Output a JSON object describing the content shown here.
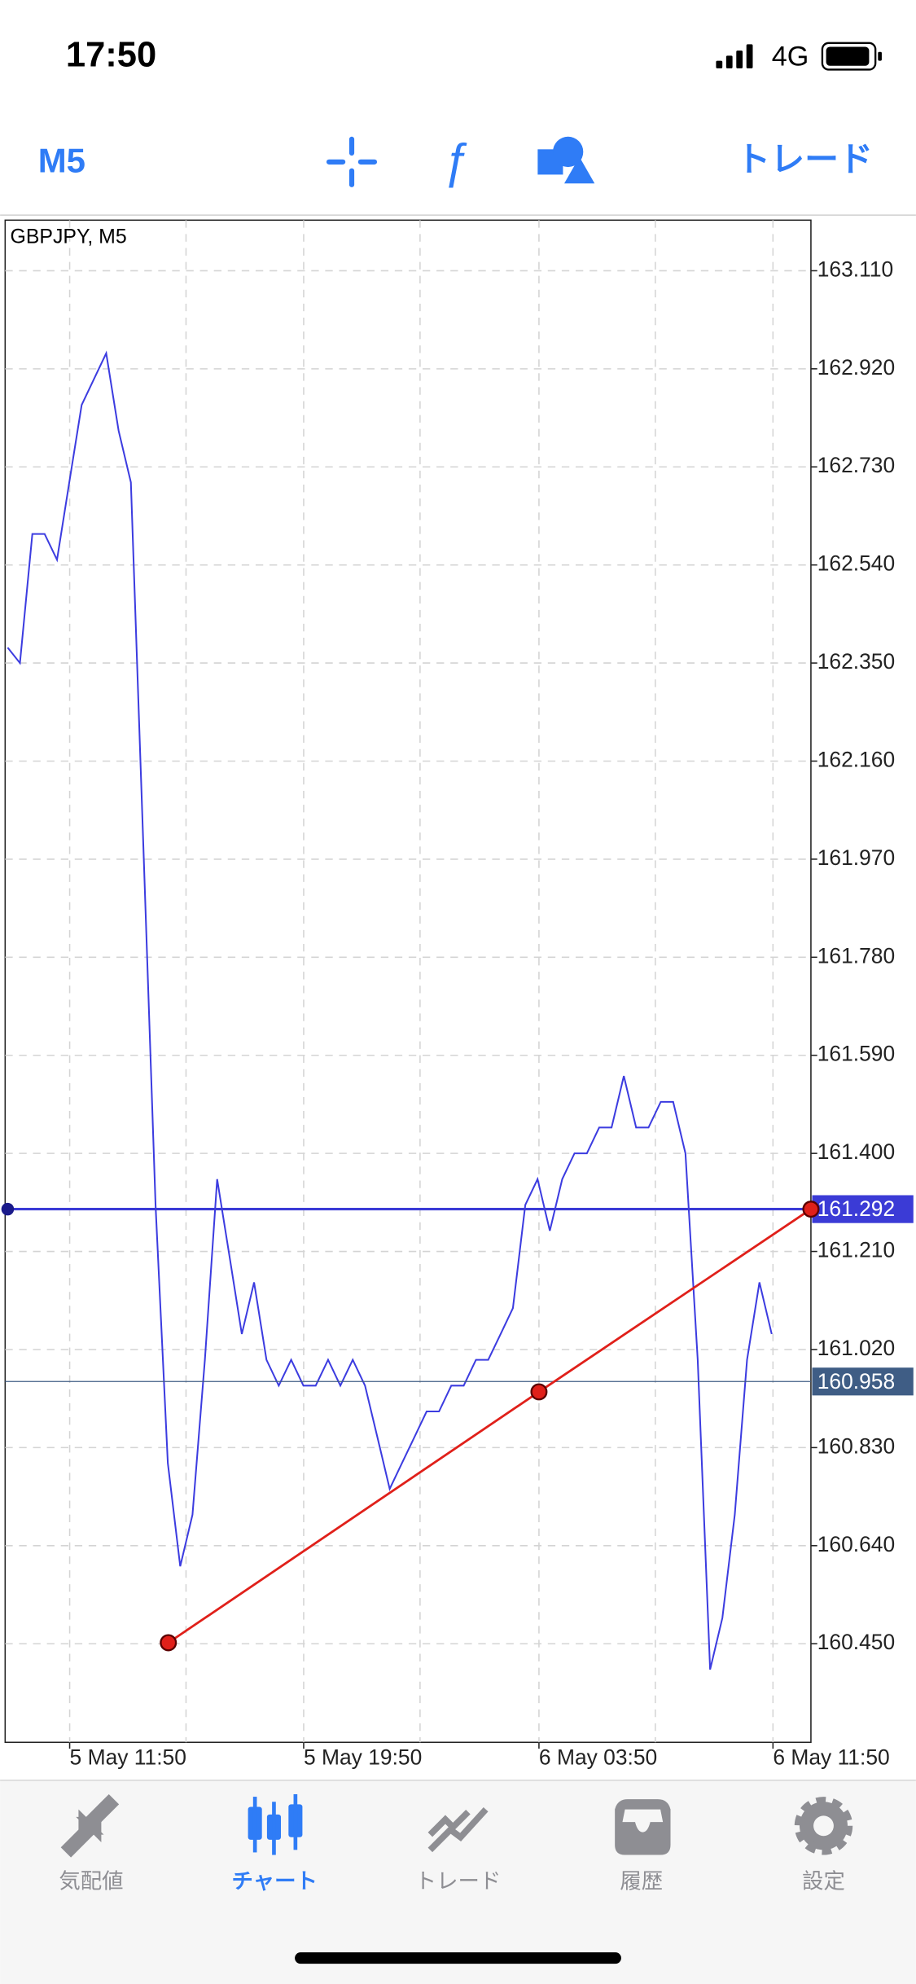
{
  "status_bar": {
    "time": "17:50",
    "network": "4G"
  },
  "toolbar": {
    "timeframe": "M5",
    "trade": "トレード"
  },
  "chart": {
    "symbol_label": "GBPJPY, M5",
    "ylim": [
      160.259,
      163.208
    ],
    "yticks": [
      {
        "value": 163.11,
        "label": "163.110"
      },
      {
        "value": 162.92,
        "label": "162.920"
      },
      {
        "value": 162.73,
        "label": "162.730"
      },
      {
        "value": 162.54,
        "label": "162.540"
      },
      {
        "value": 162.35,
        "label": "162.350"
      },
      {
        "value": 162.16,
        "label": "162.160"
      },
      {
        "value": 161.97,
        "label": "161.970"
      },
      {
        "value": 161.78,
        "label": "161.780"
      },
      {
        "value": 161.59,
        "label": "161.590"
      },
      {
        "value": 161.4,
        "label": "161.400"
      },
      {
        "value": 161.21,
        "label": "161.210"
      },
      {
        "value": 161.02,
        "label": "161.020"
      },
      {
        "value": 160.83,
        "label": "160.830"
      },
      {
        "value": 160.64,
        "label": "160.640"
      },
      {
        "value": 160.45,
        "label": "160.450"
      }
    ],
    "xtick_labels": [
      "5 May 11:50",
      "5 May 19:50",
      "6 May 03:50",
      "6 May 11:50"
    ],
    "price_color": "#3c3ce0",
    "price": [
      162.38,
      162.35,
      162.6,
      162.6,
      162.55,
      162.7,
      162.85,
      162.9,
      162.95,
      162.8,
      162.7,
      162.0,
      161.3,
      160.8,
      160.6,
      160.7,
      161.0,
      161.35,
      161.2,
      161.05,
      161.15,
      161.0,
      160.95,
      161.0,
      160.95,
      160.95,
      161.0,
      160.95,
      161.0,
      160.95,
      160.85,
      160.75,
      160.8,
      160.85,
      160.9,
      160.9,
      160.95,
      160.95,
      161.0,
      161.0,
      161.05,
      161.1,
      161.3,
      161.35,
      161.25,
      161.35,
      161.4,
      161.4,
      161.45,
      161.45,
      161.55,
      161.45,
      161.45,
      161.5,
      161.5,
      161.4,
      161.0,
      160.4,
      160.5,
      160.7,
      161.0,
      161.15,
      161.05
    ],
    "horizontal_line": {
      "value": 161.292,
      "color": "#3b3bd6"
    },
    "current_price": {
      "value": 160.958,
      "color": "#3f5d85"
    },
    "trendline": {
      "values": [
        160.452,
        160.938,
        161.292
      ],
      "color": "#e0201a"
    }
  },
  "tab_bar": {
    "tabs": [
      "気配値",
      "チャート",
      "トレード",
      "履歴",
      "設定"
    ],
    "active": 1
  }
}
